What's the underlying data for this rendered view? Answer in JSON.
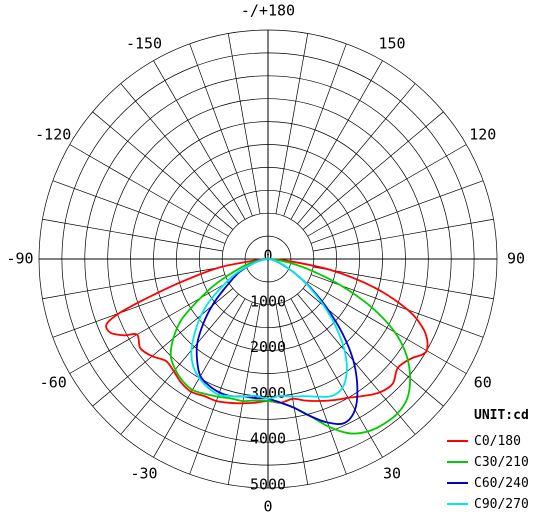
{
  "chart_data": {
    "type": "polar",
    "unit_label": "UNIT:cd",
    "angle_tick_labels": [
      {
        "angle": 180,
        "text": "-/+180"
      },
      {
        "angle": 150,
        "text": "150"
      },
      {
        "angle": -150,
        "text": "-150"
      },
      {
        "angle": 120,
        "text": "120"
      },
      {
        "angle": -120,
        "text": "-120"
      },
      {
        "angle": 90,
        "text": "90"
      },
      {
        "angle": -90,
        "text": "-90"
      },
      {
        "angle": 60,
        "text": "60"
      },
      {
        "angle": -60,
        "text": "-60"
      },
      {
        "angle": 30,
        "text": "30"
      },
      {
        "angle": -30,
        "text": "-30"
      },
      {
        "angle": 0,
        "text": "0"
      }
    ],
    "radial_tick_labels": [
      "0",
      "1000",
      "2000",
      "3000",
      "4000",
      "5000"
    ],
    "radial_range": [
      0,
      5000
    ],
    "angle_step_deg": 10,
    "grid": true,
    "legend_position": "bottom-right",
    "series": [
      {
        "name": "C0/180",
        "color": "#ff0000",
        "points": [
          [
            -85,
            200
          ],
          [
            -80,
            1100
          ],
          [
            -75,
            2000
          ],
          [
            -72,
            2800
          ],
          [
            -70,
            3450
          ],
          [
            -68,
            3800
          ],
          [
            -65,
            3800
          ],
          [
            -62,
            3550
          ],
          [
            -60,
            3300
          ],
          [
            -55,
            3400
          ],
          [
            -50,
            3300
          ],
          [
            -45,
            3150
          ],
          [
            -40,
            3200
          ],
          [
            -35,
            3300
          ],
          [
            -30,
            3350
          ],
          [
            -25,
            3300
          ],
          [
            -20,
            3300
          ],
          [
            -15,
            3250
          ],
          [
            -10,
            3200
          ],
          [
            -5,
            3150
          ],
          [
            0,
            3100
          ],
          [
            5,
            3150
          ],
          [
            10,
            3100
          ],
          [
            15,
            3200
          ],
          [
            20,
            3300
          ],
          [
            25,
            3400
          ],
          [
            30,
            3500
          ],
          [
            35,
            3650
          ],
          [
            40,
            3800
          ],
          [
            45,
            3850
          ],
          [
            50,
            3700
          ],
          [
            55,
            3800
          ],
          [
            58,
            3950
          ],
          [
            60,
            4000
          ],
          [
            63,
            3900
          ],
          [
            66,
            3700
          ],
          [
            70,
            3250
          ],
          [
            75,
            2400
          ],
          [
            80,
            1400
          ],
          [
            85,
            400
          ]
        ]
      },
      {
        "name": "C30/210",
        "color": "#00cc00",
        "points": [
          [
            -85,
            100
          ],
          [
            -75,
            500
          ],
          [
            -65,
            1200
          ],
          [
            -60,
            1700
          ],
          [
            -55,
            2300
          ],
          [
            -50,
            2700
          ],
          [
            -45,
            3000
          ],
          [
            -40,
            3150
          ],
          [
            -35,
            3250
          ],
          [
            -30,
            3300
          ],
          [
            -25,
            3250
          ],
          [
            -20,
            3200
          ],
          [
            -15,
            3150
          ],
          [
            -10,
            3150
          ],
          [
            -5,
            3100
          ],
          [
            0,
            3100
          ],
          [
            5,
            3150
          ],
          [
            10,
            3300
          ],
          [
            15,
            3550
          ],
          [
            20,
            3900
          ],
          [
            25,
            4200
          ],
          [
            30,
            4350
          ],
          [
            35,
            4400
          ],
          [
            40,
            4400
          ],
          [
            45,
            4300
          ],
          [
            50,
            4050
          ],
          [
            55,
            3700
          ],
          [
            60,
            3200
          ],
          [
            65,
            2500
          ],
          [
            70,
            1700
          ],
          [
            75,
            1000
          ],
          [
            80,
            500
          ],
          [
            85,
            150
          ]
        ]
      },
      {
        "name": "C60/240",
        "color": "#0000cc",
        "points": [
          [
            -85,
            50
          ],
          [
            -75,
            300
          ],
          [
            -65,
            700
          ],
          [
            -55,
            1200
          ],
          [
            -50,
            1600
          ],
          [
            -45,
            2000
          ],
          [
            -40,
            2400
          ],
          [
            -35,
            2700
          ],
          [
            -30,
            2950
          ],
          [
            -25,
            3050
          ],
          [
            -20,
            3100
          ],
          [
            -15,
            3100
          ],
          [
            -10,
            3050
          ],
          [
            -5,
            3050
          ],
          [
            0,
            3050
          ],
          [
            5,
            3150
          ],
          [
            10,
            3300
          ],
          [
            15,
            3550
          ],
          [
            20,
            3800
          ],
          [
            25,
            3950
          ],
          [
            30,
            3800
          ],
          [
            35,
            3400
          ],
          [
            40,
            2900
          ],
          [
            45,
            2300
          ],
          [
            50,
            1700
          ],
          [
            55,
            1200
          ],
          [
            60,
            800
          ],
          [
            65,
            500
          ],
          [
            75,
            200
          ],
          [
            85,
            50
          ]
        ]
      },
      {
        "name": "C90/270",
        "color": "#00e5ee",
        "points": [
          [
            -85,
            50
          ],
          [
            -75,
            300
          ],
          [
            -65,
            800
          ],
          [
            -55,
            1500
          ],
          [
            -50,
            1900
          ],
          [
            -45,
            2250
          ],
          [
            -40,
            2600
          ],
          [
            -35,
            2850
          ],
          [
            -30,
            3000
          ],
          [
            -25,
            3100
          ],
          [
            -20,
            3150
          ],
          [
            -15,
            3100
          ],
          [
            -10,
            3050
          ],
          [
            -5,
            3000
          ],
          [
            0,
            3050
          ],
          [
            5,
            3000
          ],
          [
            10,
            3050
          ],
          [
            15,
            3100
          ],
          [
            20,
            3200
          ],
          [
            25,
            3300
          ],
          [
            30,
            3250
          ],
          [
            35,
            3000
          ],
          [
            40,
            2600
          ],
          [
            45,
            2100
          ],
          [
            50,
            1600
          ],
          [
            55,
            1150
          ],
          [
            60,
            800
          ],
          [
            65,
            500
          ],
          [
            75,
            200
          ],
          [
            85,
            50
          ]
        ]
      }
    ]
  }
}
